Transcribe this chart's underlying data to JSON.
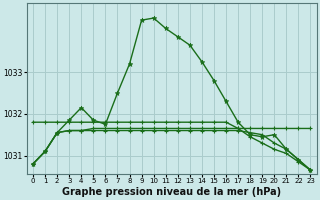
{
  "bg_color": "#cce8e8",
  "grid_color": "#aacccc",
  "line_color": "#1a6e1a",
  "xlabel": "Graphe pression niveau de la mer (hPa)",
  "xlabel_fontsize": 7.0,
  "ylim": [
    1030.55,
    1034.65
  ],
  "yticks": [
    1031,
    1032,
    1033
  ],
  "ytick_labels": [
    "1031",
    "1032",
    "1033"
  ],
  "xlim": [
    -0.5,
    23.5
  ],
  "xticks": [
    0,
    1,
    2,
    3,
    4,
    5,
    6,
    7,
    8,
    9,
    10,
    11,
    12,
    13,
    14,
    15,
    16,
    17,
    18,
    19,
    20,
    21,
    22,
    23
  ],
  "series1": [
    1030.8,
    1031.1,
    1031.55,
    1031.85,
    1032.15,
    1031.85,
    1031.75,
    1032.5,
    1033.2,
    1034.25,
    1034.3,
    1034.05,
    1033.85,
    1033.65,
    1033.25,
    1032.8,
    1032.3,
    1031.8,
    1031.5,
    1031.45,
    1031.5,
    1031.15,
    1030.9,
    1030.65
  ],
  "series2": [
    1031.8,
    1031.8,
    1031.8,
    1031.8,
    1031.8,
    1031.8,
    1031.8,
    1031.8,
    1031.8,
    1031.8,
    1031.8,
    1031.8,
    1031.8,
    1031.8,
    1031.8,
    1031.8,
    1031.8,
    1031.65,
    1031.45,
    1031.3,
    1031.15,
    1031.05,
    1030.85,
    1030.65
  ],
  "series3": [
    1030.8,
    1031.1,
    1031.55,
    1031.6,
    1031.6,
    1031.6,
    1031.6,
    1031.6,
    1031.6,
    1031.6,
    1031.6,
    1031.6,
    1031.6,
    1031.6,
    1031.6,
    1031.6,
    1031.6,
    1031.6,
    1031.55,
    1031.5,
    1031.3,
    1031.15,
    1030.9,
    1030.65
  ],
  "series4": [
    1030.8,
    1031.1,
    1031.55,
    1031.6,
    1031.6,
    1031.65,
    1031.65,
    1031.65,
    1031.65,
    1031.65,
    1031.65,
    1031.65,
    1031.65,
    1031.65,
    1031.65,
    1031.65,
    1031.65,
    1031.65,
    1031.65,
    1031.65,
    1031.65,
    1031.65,
    1031.65,
    1031.65
  ]
}
